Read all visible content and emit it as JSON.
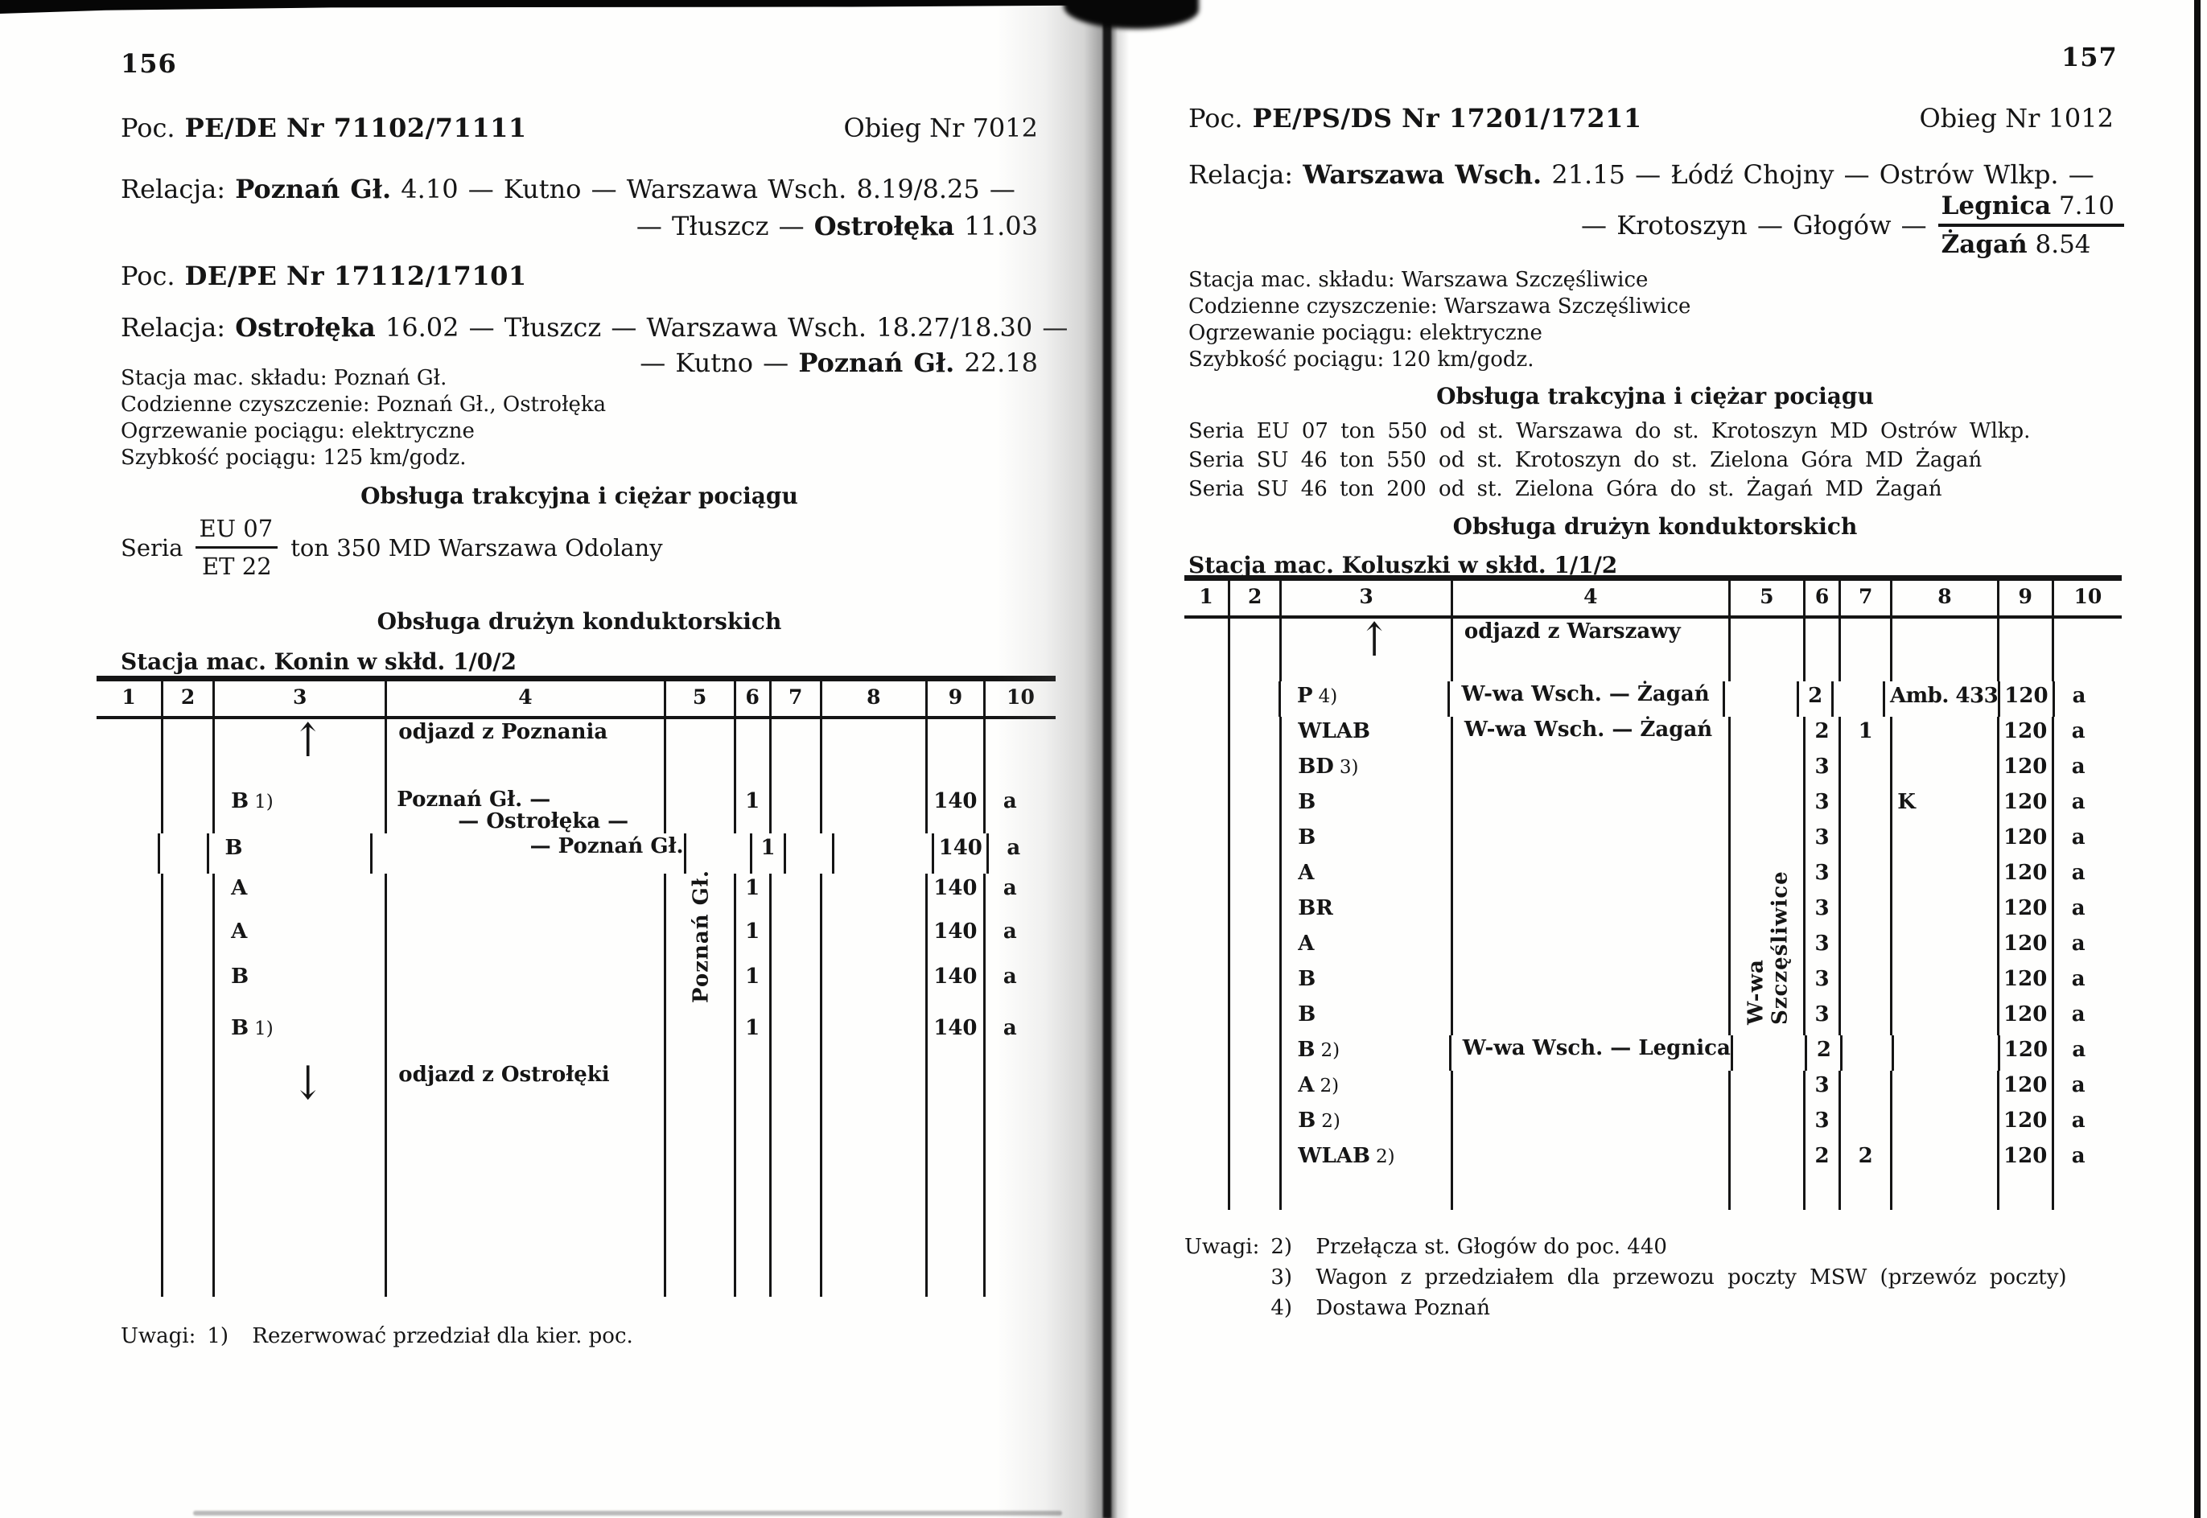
{
  "left": {
    "page_number": "156",
    "poc1": {
      "prefix": "Poc.",
      "title": "PE/DE Nr 71102/71111",
      "obieg": "Obieg Nr 7012"
    },
    "rel1_l1": [
      {
        "t": "Relacja: "
      },
      {
        "t": "Poznań Gł.",
        "b": true
      },
      {
        "t": " 4.10 — Kutno — Warszawa Wsch. 8.19/8.25 —"
      }
    ],
    "rel1_l2": [
      {
        "t": "— Tłuszcz — "
      },
      {
        "t": "Ostrołęka",
        "b": true
      },
      {
        "t": " 11.03"
      }
    ],
    "poc2": {
      "prefix": "Poc.",
      "title": "DE/PE Nr 17112/17101"
    },
    "rel2_l1": [
      {
        "t": "Relacja: "
      },
      {
        "t": "Ostrołęka",
        "b": true
      },
      {
        "t": " 16.02 — Tłuszcz — Warszawa Wsch. 18.27/18.30 —"
      }
    ],
    "rel2_l2": [
      {
        "t": "— Kutno — "
      },
      {
        "t": "Poznań Gł.",
        "b": true
      },
      {
        "t": " 22.18"
      }
    ],
    "info": [
      "Stacja mac. składu: Poznań Gł.",
      "Codzienne czyszczenie: Poznań Gł., Ostrołęka",
      "Ogrzewanie pociągu: elektryczne",
      "Szybkość pociągu: 125 km/godz."
    ],
    "heading_traction": "Obsługa trakcyjna i ciężar pociągu",
    "seria": {
      "prefix": "Seria",
      "num": "EU 07",
      "den": "ET 22",
      "suffix": "ton 350 MD Warszawa Odolany"
    },
    "heading_conductors": "Obsługa drużyn konduktorskich",
    "stacja": "Stacja mac. Konin w skłd. 1/0/2",
    "table": {
      "headers": [
        "1",
        "2",
        "3",
        "4",
        "5",
        "6",
        "7",
        "8",
        "9",
        "10"
      ],
      "vertical_label": "Poznań Gł.",
      "rows": [
        {
          "arrow": "up",
          "route": [
            "odjazd z Poznania"
          ]
        },
        {
          "label": "B",
          "suffix": "1)",
          "route": [
            "Poznań Gł. —",
            "— Ostrołęka —"
          ],
          "cols": {
            "6": "1",
            "9": "140",
            "10": "a"
          }
        },
        {
          "label": "B",
          "route": [
            "— Poznań Gł."
          ],
          "cols": {
            "6": "1",
            "9": "140",
            "10": "a"
          }
        },
        {
          "label": "A",
          "cols": {
            "6": "1",
            "9": "140",
            "10": "a"
          }
        },
        {
          "label": "A",
          "cols": {
            "6": "1",
            "9": "140",
            "10": "a"
          }
        },
        {
          "label": "B",
          "cols": {
            "6": "1",
            "9": "140",
            "10": "a"
          }
        },
        {
          "label": "B",
          "suffix": "1)",
          "cols": {
            "6": "1",
            "9": "140",
            "10": "a"
          }
        },
        {
          "arrow": "down",
          "route": [
            "odjazd z Ostrołęki"
          ]
        }
      ]
    },
    "uwagi": {
      "label": "Uwagi:",
      "items": [
        {
          "n": "1)",
          "t": "Rezerwować przedział dla kier. poc."
        }
      ]
    }
  },
  "right": {
    "page_number": "157",
    "poc1": {
      "prefix": "Poc.",
      "title": "PE/PS/DS Nr 17201/17211",
      "obieg": "Obieg Nr 1012"
    },
    "rel1_l1": [
      {
        "t": "Relacja: "
      },
      {
        "t": "Warszawa Wsch.",
        "b": true
      },
      {
        "t": " 21.15 — Łódź Chojny — Ostrów Wlkp. —"
      }
    ],
    "rel1_l2_prefix": [
      {
        "t": "— Krotoszyn — Głogów —"
      }
    ],
    "rel1_frac_top": [
      {
        "t": "Legnica",
        "b": true
      },
      {
        "t": " 7.10"
      }
    ],
    "rel1_frac_bottom": [
      {
        "t": "Żagań",
        "b": true
      },
      {
        "t": " 8.54"
      }
    ],
    "info": [
      "Stacja mac. składu: Warszawa Szczęśliwice",
      "Codzienne czyszczenie: Warszawa Szczęśliwice",
      "Ogrzewanie pociągu: elektryczne",
      "Szybkość pociągu: 120 km/godz."
    ],
    "heading_traction": "Obsługa trakcyjna i ciężar pociągu",
    "seria_lines": [
      "Seria EU 07 ton 550 od st. Warszawa do st. Krotoszyn MD Ostrów Wlkp.",
      "Seria SU 46 ton 550 od st. Krotoszyn do st. Zielona Góra MD Żagań",
      "Seria SU 46 ton 200 od st. Zielona Góra do st. Żagań MD Żagań"
    ],
    "heading_conductors": "Obsługa drużyn konduktorskich",
    "stacja": "Stacja mac. Koluszki w skłd. 1/1/2",
    "table": {
      "headers": [
        "1",
        "2",
        "3",
        "4",
        "5",
        "6",
        "7",
        "8",
        "9",
        "10"
      ],
      "vertical_label": "W-wa Szczęśliwice",
      "rows": [
        {
          "arrow": "up",
          "route": [
            "odjazd z Warszawy"
          ]
        },
        {
          "label": "P",
          "suffix": "4)",
          "route": [
            "W-wa Wsch. — Żagań"
          ],
          "cols": {
            "6": "2",
            "8": "Amb. 433",
            "9": "120",
            "10": "a"
          }
        },
        {
          "label": "WLAB",
          "route": [
            "W-wa Wsch. — Żagań"
          ],
          "cols": {
            "6": "2",
            "7": "1",
            "9": "120",
            "10": "a"
          }
        },
        {
          "label": "BD",
          "suffix": "3)",
          "cols": {
            "6": "3",
            "9": "120",
            "10": "a"
          }
        },
        {
          "label": "B",
          "cols": {
            "6": "3",
            "8": "K",
            "9": "120",
            "10": "a"
          }
        },
        {
          "label": "B",
          "cols": {
            "6": "3",
            "9": "120",
            "10": "a"
          }
        },
        {
          "label": "A",
          "cols": {
            "6": "3",
            "9": "120",
            "10": "a"
          }
        },
        {
          "label": "BR",
          "cols": {
            "6": "3",
            "9": "120",
            "10": "a"
          }
        },
        {
          "label": "A",
          "cols": {
            "6": "3",
            "9": "120",
            "10": "a"
          }
        },
        {
          "label": "B",
          "cols": {
            "6": "3",
            "9": "120",
            "10": "a"
          }
        },
        {
          "label": "B",
          "cols": {
            "6": "3",
            "9": "120",
            "10": "a"
          }
        },
        {
          "label": "B",
          "suffix": "2)",
          "route": [
            "W-wa Wsch. — Legnica"
          ],
          "cols": {
            "6": "2",
            "9": "120",
            "10": "a"
          }
        },
        {
          "label": "A",
          "suffix": "2)",
          "cols": {
            "6": "3",
            "9": "120",
            "10": "a"
          }
        },
        {
          "label": "B",
          "suffix": "2)",
          "cols": {
            "6": "3",
            "9": "120",
            "10": "a"
          }
        },
        {
          "label": "WLAB",
          "suffix": "2)",
          "cols": {
            "6": "2",
            "7": "2",
            "9": "120",
            "10": "a"
          }
        }
      ]
    },
    "uwagi": {
      "label": "Uwagi:",
      "items": [
        {
          "n": "2)",
          "t": "Przełącza st. Głogów do poc. 440"
        },
        {
          "n": "3)",
          "t": "Wagon z przedziałem dla przewozu poczty MSW (przewóz poczty)"
        },
        {
          "n": "4)",
          "t": "Dostawa Poznań"
        }
      ]
    }
  }
}
